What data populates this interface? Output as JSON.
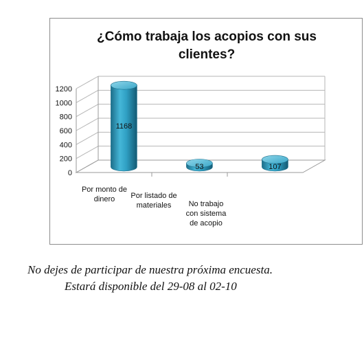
{
  "chart_data": {
    "type": "bar",
    "title_lines": [
      "¿Cómo trabaja los acopios con sus",
      "clientes?"
    ],
    "categories": [
      [
        "Por monto de",
        "dinero"
      ],
      [
        "Por listado de",
        "materiales"
      ],
      [
        "No trabajo",
        "con sistema",
        "de acopio"
      ]
    ],
    "values": [
      1168,
      53,
      107
    ],
    "data_labels": [
      "1168",
      "53",
      "107"
    ],
    "y_ticks": [
      0,
      200,
      400,
      600,
      800,
      1000,
      1200
    ],
    "ylim": [
      0,
      1200
    ],
    "grid": true,
    "legend": "none",
    "bar_color": "#2f9fc3"
  },
  "footer": {
    "line1": "No dejes de participar de nuestra próxima encuesta.",
    "line2": "Estará disponible del 29-08 al 02-10"
  }
}
